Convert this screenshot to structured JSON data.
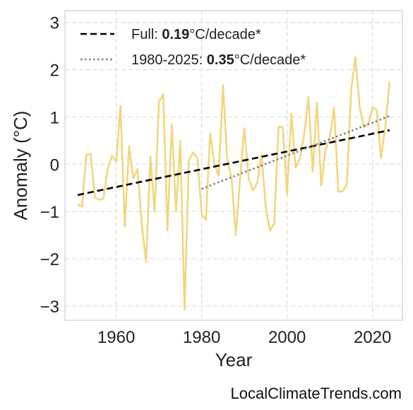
{
  "chart_data": {
    "type": "line",
    "xlabel": "Year",
    "ylabel": "Anomaly (°C)",
    "xlim": [
      1948,
      2027
    ],
    "ylim": [
      -3.3,
      3.25
    ],
    "x_ticks": [
      1960,
      1980,
      2000,
      2020
    ],
    "y_ticks": [
      3,
      2,
      1,
      0,
      -1,
      -2,
      -3
    ],
    "y_tick_labels": [
      "3",
      "2",
      "1",
      "0",
      "−1",
      "−2",
      "−3"
    ],
    "grid": true,
    "legend_position": "top-left",
    "series": [
      {
        "color": "#f2d67e",
        "x": [
          1951,
          1952,
          1953,
          1954,
          1955,
          1956,
          1957,
          1958,
          1959,
          1960,
          1961,
          1962,
          1963,
          1964,
          1965,
          1966,
          1967,
          1968,
          1969,
          1970,
          1971,
          1972,
          1973,
          1974,
          1975,
          1976,
          1977,
          1978,
          1979,
          1980,
          1981,
          1982,
          1983,
          1984,
          1985,
          1986,
          1987,
          1988,
          1989,
          1990,
          1991,
          1992,
          1993,
          1994,
          1995,
          1996,
          1997,
          1998,
          1999,
          2000,
          2001,
          2002,
          2003,
          2004,
          2005,
          2006,
          2007,
          2008,
          2009,
          2010,
          2011,
          2012,
          2013,
          2014,
          2015,
          2016,
          2017,
          2018,
          2019,
          2020,
          2021,
          2022,
          2023,
          2024
        ],
        "y": [
          -0.85,
          -0.9,
          0.2,
          0.22,
          -0.7,
          -0.75,
          -0.73,
          -0.1,
          0.18,
          0.05,
          1.23,
          -1.32,
          0.38,
          -0.3,
          -0.1,
          -1.28,
          -2.07,
          0.16,
          -1.0,
          1.32,
          1.48,
          -1.4,
          0.85,
          -1.0,
          0.49,
          -3.08,
          0.08,
          0.25,
          0.13,
          -1.05,
          -1.18,
          0.65,
          0.0,
          -0.25,
          1.67,
          0.1,
          -0.3,
          -1.5,
          -0.3,
          0.76,
          -0.3,
          -0.55,
          -0.4,
          0.2,
          -0.9,
          -1.4,
          -1.25,
          0.8,
          0.78,
          -0.63,
          1.07,
          -0.07,
          0.12,
          0.62,
          1.42,
          -0.15,
          1.3,
          -0.46,
          0.3,
          0.55,
          1.2,
          -0.58,
          -0.57,
          -0.42,
          1.58,
          2.26,
          1.2,
          0.78,
          0.85,
          1.2,
          1.15,
          0.13,
          0.8,
          1.75
        ]
      }
    ],
    "trends": [
      {
        "label": "Full: ",
        "value": "0.19",
        "unit": "°C/decade*",
        "x": [
          1951,
          2024
        ],
        "y": [
          -0.65,
          0.72
        ],
        "color": "#000000",
        "style": "dashed"
      },
      {
        "label": "1980-2025: ",
        "value": "0.35",
        "unit": "°C/decade*",
        "x": [
          1980,
          2024
        ],
        "y": [
          -0.52,
          1.02
        ],
        "color": "#808080",
        "style": "dotted"
      }
    ]
  },
  "credit": "LocalClimateTrends.com"
}
